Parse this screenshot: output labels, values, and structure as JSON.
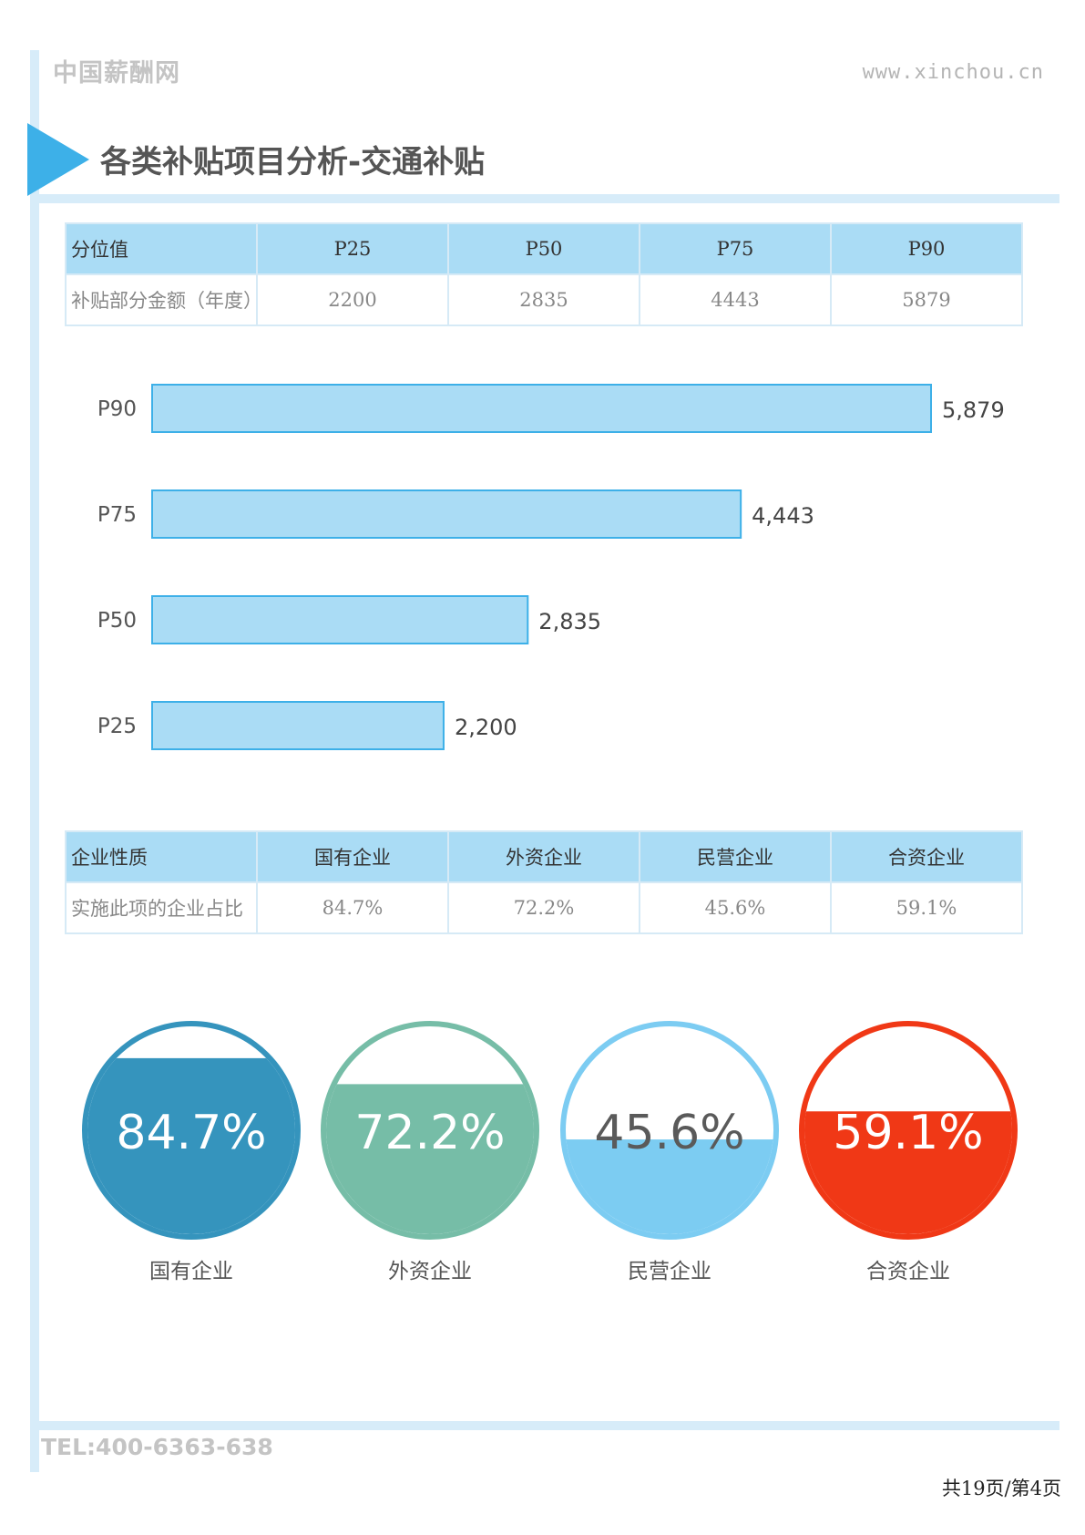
{
  "header": {
    "brand": "中国薪酬网",
    "website": "www.xinchou.cn",
    "title": "各类补贴项目分析-交通补贴"
  },
  "table1": {
    "headers": [
      "分位值",
      "P25",
      "P50",
      "P75",
      "P90"
    ],
    "row_label": "补贴部分金额（年度）",
    "values": [
      "2200",
      "2835",
      "4443",
      "5879"
    ]
  },
  "table2": {
    "headers": [
      "企业性质",
      "国有企业",
      "外资企业",
      "民营企业",
      "合资企业"
    ],
    "row_label": "实施此项的企业占比",
    "values": [
      "84.7%",
      "72.2%",
      "45.6%",
      "59.1%"
    ]
  },
  "chart_data": [
    {
      "type": "bar",
      "orientation": "horizontal",
      "categories": [
        "P90",
        "P75",
        "P50",
        "P25"
      ],
      "values": [
        5879,
        4443,
        2835,
        2200
      ],
      "value_labels": [
        "5,879",
        "4,443",
        "2,835",
        "2,200"
      ],
      "bar_color": "#aadcf5",
      "bar_border": "#3db0e8",
      "grid": false
    },
    {
      "type": "gauge",
      "items": [
        {
          "label": "国有企业",
          "value": 84.7,
          "text": "84.7%",
          "color": "#3594bd",
          "text_color": "#ffffff"
        },
        {
          "label": "外资企业",
          "value": 72.2,
          "text": "72.2%",
          "color": "#76bda7",
          "text_color": "#ffffff"
        },
        {
          "label": "民营企业",
          "value": 45.6,
          "text": "45.6%",
          "color": "#7cccf2",
          "text_color": "#5a5a5a"
        },
        {
          "label": "合资企业",
          "value": 59.1,
          "text": "59.1%",
          "color": "#f03816",
          "text_color": "#ffffff"
        }
      ]
    }
  ],
  "footer": {
    "tel": "TEL:400-6363-638",
    "page_info": "共19页/第4页"
  }
}
